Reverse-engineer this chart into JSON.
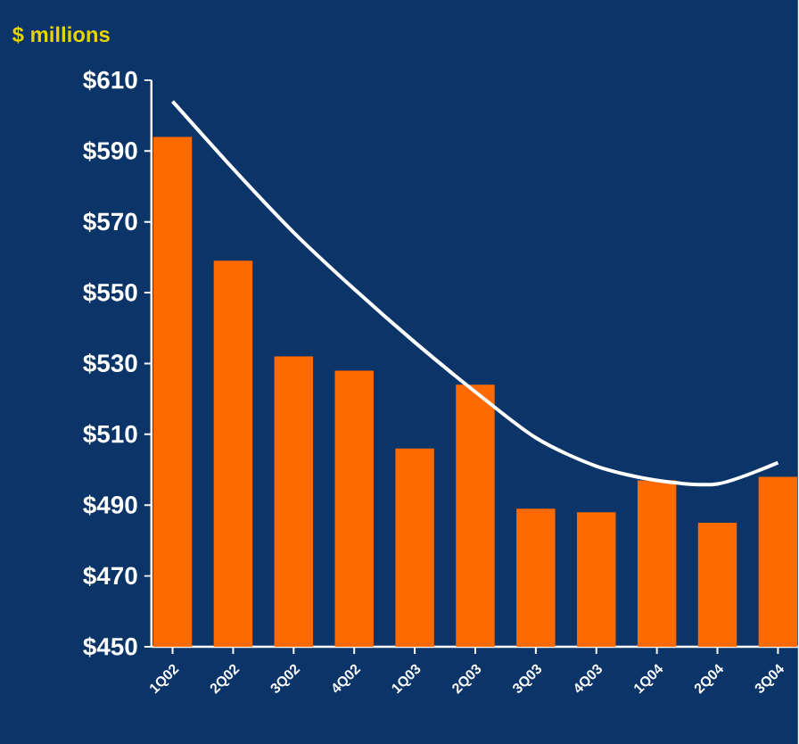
{
  "chart_data": {
    "type": "bar",
    "title": "$ millions",
    "categories": [
      "1Q02",
      "2Q02",
      "3Q02",
      "4Q02",
      "1Q03",
      "2Q03",
      "3Q03",
      "4Q03",
      "1Q04",
      "2Q04",
      "3Q04"
    ],
    "series": [
      {
        "color": "#ff6a00",
        "values": [
          594,
          559,
          532,
          528,
          506,
          524,
          489,
          488,
          497,
          485,
          498
        ]
      },
      {
        "type": "line",
        "color": "#ffffff",
        "marker": "none",
        "values": [
          604,
          585,
          567,
          551,
          536,
          522,
          509,
          501,
          497,
          496,
          502
        ]
      }
    ],
    "ylim": [
      450,
      610
    ],
    "yticks": [
      {
        "value": 450,
        "label": "$450"
      },
      {
        "value": 470,
        "label": "$470"
      },
      {
        "value": 490,
        "label": "$490"
      },
      {
        "value": 510,
        "label": "$510"
      },
      {
        "value": 530,
        "label": "$530"
      },
      {
        "value": 550,
        "label": "$550"
      },
      {
        "value": 570,
        "label": "$570"
      },
      {
        "value": 590,
        "label": "$590"
      },
      {
        "value": 610,
        "label": "$610"
      }
    ],
    "grid": false
  }
}
